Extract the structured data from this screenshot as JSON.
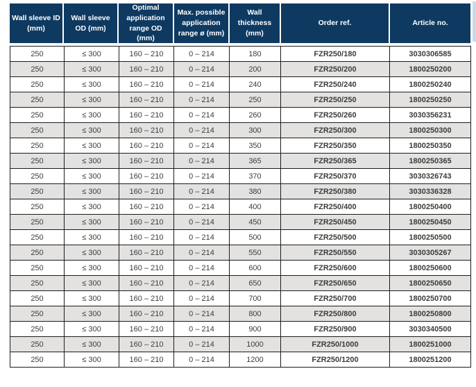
{
  "table": {
    "columns": [
      "Wall sleeve ID (mm)",
      "Wall sleeve OD (mm)",
      "Optimal application range OD (mm)",
      "Max. possible application range ø (mm)",
      "Wall thickness (mm)",
      "Order ref.",
      "Article no."
    ],
    "rows": [
      [
        "250",
        "≤ 300",
        "160 – 210",
        "0 – 214",
        "180",
        "FZR250/180",
        "3030306585"
      ],
      [
        "250",
        "≤ 300",
        "160 – 210",
        "0 – 214",
        "200",
        "FZR250/200",
        "1800250200"
      ],
      [
        "250",
        "≤ 300",
        "160 – 210",
        "0 – 214",
        "240",
        "FZR250/240",
        "1800250240"
      ],
      [
        "250",
        "≤ 300",
        "160 – 210",
        "0 – 214",
        "250",
        "FZR250/250",
        "1800250250"
      ],
      [
        "250",
        "≤ 300",
        "160 – 210",
        "0 – 214",
        "260",
        "FZR250/260",
        "3030356231"
      ],
      [
        "250",
        "≤ 300",
        "160 – 210",
        "0 – 214",
        "300",
        "FZR250/300",
        "1800250300"
      ],
      [
        "250",
        "≤ 300",
        "160 – 210",
        "0 – 214",
        "350",
        "FZR250/350",
        "1800250350"
      ],
      [
        "250",
        "≤ 300",
        "160 – 210",
        "0 – 214",
        "365",
        "FZR250/365",
        "1800250365"
      ],
      [
        "250",
        "≤ 300",
        "160 – 210",
        "0 – 214",
        "370",
        "FZR250/370",
        "3030326743"
      ],
      [
        "250",
        "≤ 300",
        "160 – 210",
        "0 – 214",
        "380",
        "FZR250/380",
        "3030336328"
      ],
      [
        "250",
        "≤ 300",
        "160 – 210",
        "0 – 214",
        "400",
        "FZR250/400",
        "1800250400"
      ],
      [
        "250",
        "≤ 300",
        "160 – 210",
        "0 – 214",
        "450",
        "FZR250/450",
        "1800250450"
      ],
      [
        "250",
        "≤ 300",
        "160 – 210",
        "0 – 214",
        "500",
        "FZR250/500",
        "1800250500"
      ],
      [
        "250",
        "≤ 300",
        "160 – 210",
        "0 – 214",
        "550",
        "FZR250/550",
        "3030305267"
      ],
      [
        "250",
        "≤ 300",
        "160 – 210",
        "0 – 214",
        "600",
        "FZR250/600",
        "1800250600"
      ],
      [
        "250",
        "≤ 300",
        "160 – 210",
        "0 – 214",
        "650",
        "FZR250/650",
        "1800250650"
      ],
      [
        "250",
        "≤ 300",
        "160 – 210",
        "0 – 214",
        "700",
        "FZR250/700",
        "1800250700"
      ],
      [
        "250",
        "≤ 300",
        "160 – 210",
        "0 – 214",
        "800",
        "FZR250/800",
        "1800250800"
      ],
      [
        "250",
        "≤ 300",
        "160 – 210",
        "0 – 214",
        "900",
        "FZR250/900",
        "3030340500"
      ],
      [
        "250",
        "≤ 300",
        "160 – 210",
        "0 – 214",
        "1000",
        "FZR250/1000",
        "1800251000"
      ],
      [
        "250",
        "≤ 300",
        "160 – 210",
        "0 – 214",
        "1200",
        "FZR250/1200",
        "1800251200"
      ]
    ],
    "bold_column_indices": [
      5,
      6
    ],
    "colors": {
      "header_bg": "#0e3a61",
      "header_text": "#ffffff",
      "row_bg": "#ffffff",
      "row_alt_bg": "#e3e2e0",
      "cell_border": "#1b1b1b",
      "cell_text": "#3c3c3b",
      "page_edge": "#cdd9e7"
    }
  }
}
